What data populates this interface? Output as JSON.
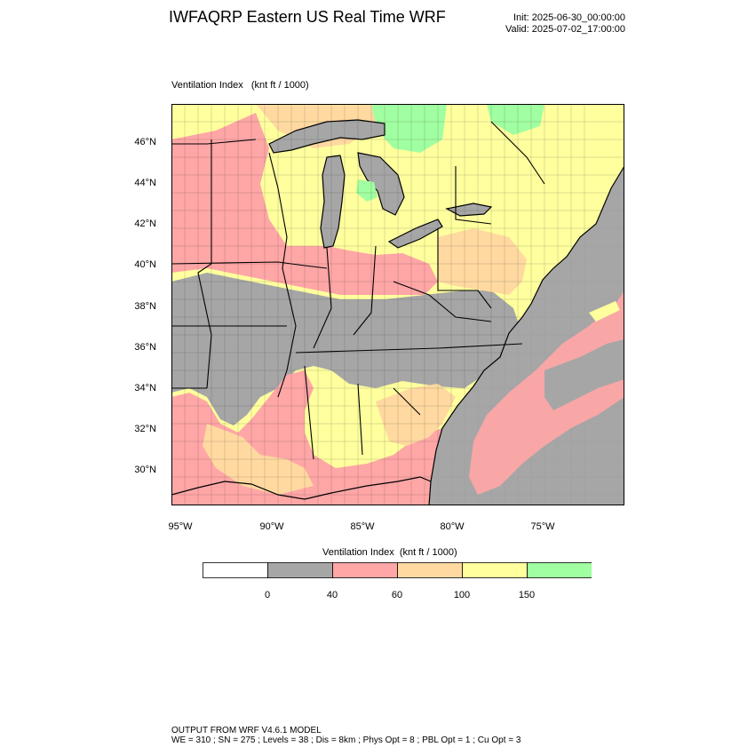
{
  "header": {
    "title": "IWFAQRP Eastern US Real Time WRF",
    "init": "Init: 2025-06-30_00:00:00",
    "valid": "Valid: 2025-07-02_17:00:00"
  },
  "map": {
    "title": "Ventilation Index   (knt ft / 1000)",
    "lat_labels": [
      "46°N",
      "44°N",
      "42°N",
      "40°N",
      "38°N",
      "36°N",
      "34°N",
      "32°N",
      "30°N"
    ],
    "lon_labels": [
      "95°W",
      "90°W",
      "85°W",
      "80°W",
      "75°W"
    ]
  },
  "legend": {
    "title": "Ventilation Index  (knt ft / 1000)",
    "labels": [
      "0",
      "40",
      "60",
      "100",
      "150"
    ],
    "colors": [
      "#ffffff",
      "#a6a6a6",
      "#ffa6a6",
      "#ffd9a0",
      "#ffff9e",
      "#a0ffa0"
    ]
  },
  "colors": {
    "water": "#a6a6a6",
    "land_low": "#a6a6a6",
    "land_poor": "#ffa6a6",
    "land_fair": "#ffd9a0",
    "land_good": "#ffff9e",
    "land_excellent": "#a0ffa0"
  },
  "footer": {
    "line1": "OUTPUT FROM WRF V4.6.1 MODEL",
    "line2": "WE = 310 ; SN = 275 ; Levels = 38 ; Dis = 8km ; Phys Opt = 8 ; PBL Opt = 1 ; Cu Opt = 3"
  }
}
